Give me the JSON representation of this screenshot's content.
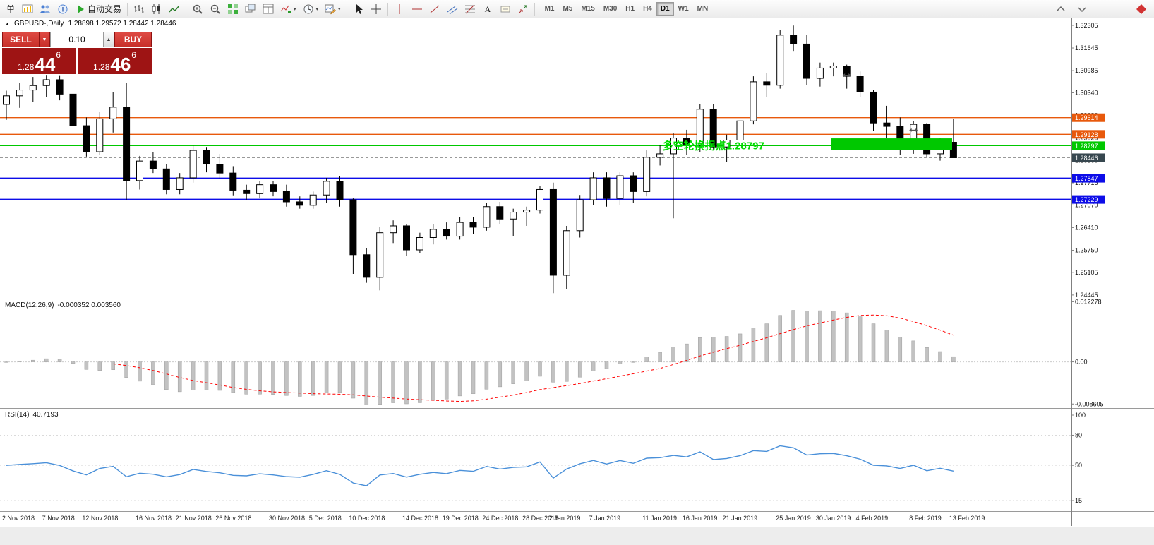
{
  "toolbar": {
    "new_order_label": "单",
    "autotrading_label": "自动交易",
    "timeframes": [
      "M1",
      "M5",
      "M15",
      "M30",
      "H1",
      "H4",
      "D1",
      "W1",
      "MN"
    ],
    "active_timeframe": "D1",
    "items": [
      {
        "type": "button",
        "name": "new-order",
        "label_key": "new_order_label"
      },
      {
        "type": "icon",
        "name": "new-chart",
        "icon": "chart-new"
      },
      {
        "type": "icon",
        "name": "profiles",
        "icon": "profiles"
      },
      {
        "type": "icon",
        "name": "data-window",
        "icon": "info"
      },
      {
        "type": "button-icon",
        "name": "autotrading",
        "icon": "play",
        "label_key": "autotrading_label"
      },
      {
        "type": "sep"
      },
      {
        "type": "icon",
        "name": "bar-chart-mode",
        "icon": "bars"
      },
      {
        "type": "icon",
        "name": "candle-chart-mode",
        "icon": "candles"
      },
      {
        "type": "icon",
        "name": "line-chart-mode",
        "icon": "linechart"
      },
      {
        "type": "sep"
      },
      {
        "type": "icon",
        "name": "zoom-in",
        "icon": "zoom-in"
      },
      {
        "type": "icon",
        "name": "zoom-out",
        "icon": "zoom-out"
      },
      {
        "type": "icon",
        "name": "tile-windows",
        "icon": "tile"
      },
      {
        "type": "icon",
        "name": "cascade-windows",
        "icon": "cascade"
      },
      {
        "type": "icon",
        "name": "arrange-windows",
        "icon": "arrange"
      },
      {
        "type": "icon",
        "name": "indicators",
        "icon": "indicators",
        "caret": true
      },
      {
        "type": "icon",
        "name": "periods",
        "icon": "clock",
        "caret": true
      },
      {
        "type": "icon",
        "name": "templates",
        "icon": "template",
        "caret": true
      },
      {
        "type": "sep"
      },
      {
        "type": "icon",
        "name": "cursor",
        "icon": "cursor"
      },
      {
        "type": "icon",
        "name": "crosshair",
        "icon": "crosshair"
      },
      {
        "type": "sep"
      },
      {
        "type": "icon",
        "name": "vertical-line-tool",
        "icon": "vline"
      },
      {
        "type": "icon",
        "name": "horizontal-line-tool",
        "icon": "hline"
      },
      {
        "type": "icon",
        "name": "trendline-tool",
        "icon": "trend"
      },
      {
        "type": "icon",
        "name": "equidistant-channel-tool",
        "icon": "channel"
      },
      {
        "type": "icon",
        "name": "fibonacci-tool",
        "icon": "fibo"
      },
      {
        "type": "icon",
        "name": "text-tool",
        "icon": "text"
      },
      {
        "type": "icon",
        "name": "text-label-tool",
        "icon": "label"
      },
      {
        "type": "icon",
        "name": "arrows-tool",
        "icon": "arrows"
      },
      {
        "type": "sep"
      },
      {
        "type": "timeframes"
      }
    ],
    "right_items": [
      {
        "name": "scroll-up",
        "icon": "chevup"
      },
      {
        "name": "scroll-down",
        "icon": "chevdn"
      },
      {
        "name": "brand",
        "icon": "brand"
      }
    ]
  },
  "trade_panel": {
    "sell_label": "SELL",
    "buy_label": "BUY",
    "volume": "0.10",
    "bid": {
      "prefix": "1.28",
      "big": "44",
      "sup": "6"
    },
    "ask": {
      "prefix": "1.28",
      "big": "46",
      "sup": "6"
    }
  },
  "chart": {
    "symbol_period": "GBPUSD-,Daily",
    "ohlc_text": "1.28898 1.29572 1.28442 1.28446"
  },
  "chart_data": {
    "type": "candlestick",
    "symbol": "GBPUSD-",
    "timeframe": "Daily",
    "current_bar": {
      "open": 1.28898,
      "high": 1.29572,
      "low": 1.28442,
      "close": 1.28446
    },
    "y_axis_labels": [
      "1.32305",
      "1.31645",
      "1.30985",
      "1.30340",
      "1.29680",
      "1.29020",
      "1.28360",
      "1.27715",
      "1.27070",
      "1.26410",
      "1.25750",
      "1.25105",
      "1.24445"
    ],
    "levels": [
      {
        "price": 1.29614,
        "label": "1.29614",
        "color": "#E8590C",
        "width": 1.4
      },
      {
        "price": 1.29128,
        "label": "1.29128",
        "color": "#E8590C",
        "width": 1.4
      },
      {
        "price": 1.28797,
        "label": "1.28797",
        "color": "#00C800",
        "width": 1.2
      },
      {
        "price": 1.27847,
        "label": "1.27847",
        "color": "#0D0DE8",
        "width": 2
      },
      {
        "price": 1.27229,
        "label": "1.27229",
        "color": "#0D0DE8",
        "width": 2
      }
    ],
    "bid_line": {
      "price": 1.28446,
      "label": "1.28446"
    },
    "rectangle": {
      "from_index": 61.8,
      "to_index": 70.9,
      "price_top": 1.2901,
      "price_bottom": 1.2867
    },
    "annotation": {
      "text": "多空轮换拐点1.28797",
      "index": 53,
      "price": 1.28797
    },
    "trade_markers": [
      {
        "index": 63,
        "price": 1.3085
      },
      {
        "index": 68,
        "price": 1.2925
      }
    ],
    "candles": [
      [
        "2 Nov 2018",
        1.3,
        1.304,
        1.2955,
        1.3025
      ],
      [
        "5 Nov 2018",
        1.3025,
        1.3062,
        1.299,
        1.3042
      ],
      [
        "6 Nov 2018",
        1.3042,
        1.308,
        1.3008,
        1.3055
      ],
      [
        "7 Nov 2018",
        1.3055,
        1.3086,
        1.3022,
        1.3072
      ],
      [
        "8 Nov 2018",
        1.3072,
        1.3085,
        1.3012,
        1.303
      ],
      [
        "9 Nov 2018",
        1.303,
        1.3048,
        1.292,
        1.2938
      ],
      [
        "12 Nov 2018",
        1.2938,
        1.2962,
        1.2848,
        1.2862
      ],
      [
        "13 Nov 2018",
        1.2862,
        1.2978,
        1.2852,
        1.2958
      ],
      [
        "14 Nov 2018",
        1.2958,
        1.3035,
        1.2918,
        1.2992
      ],
      [
        "15 Nov 2018",
        1.2992,
        1.3062,
        1.2722,
        1.2778
      ],
      [
        "16 Nov 2018",
        1.2778,
        1.285,
        1.2752,
        1.2835
      ],
      [
        "19 Nov 2018",
        1.2835,
        1.286,
        1.28,
        1.2812
      ],
      [
        "20 Nov 2018",
        1.2812,
        1.2826,
        1.2738,
        1.2752
      ],
      [
        "21 Nov 2018",
        1.2752,
        1.28,
        1.2738,
        1.2786
      ],
      [
        "22 Nov 2018",
        1.2786,
        1.288,
        1.2772,
        1.2866
      ],
      [
        "23 Nov 2018",
        1.2866,
        1.2876,
        1.2802,
        1.2826
      ],
      [
        "26 Nov 2018",
        1.2826,
        1.2856,
        1.2782,
        1.28
      ],
      [
        "27 Nov 2018",
        1.28,
        1.282,
        1.2735,
        1.275
      ],
      [
        "28 Nov 2018",
        1.275,
        1.2766,
        1.2722,
        1.274
      ],
      [
        "29 Nov 2018",
        1.274,
        1.2776,
        1.2726,
        1.2766
      ],
      [
        "30 Nov 2018",
        1.2766,
        1.2776,
        1.2732,
        1.2746
      ],
      [
        "3 Dec 2018",
        1.2746,
        1.2766,
        1.2702,
        1.2716
      ],
      [
        "4 Dec 2018",
        1.2716,
        1.2732,
        1.2696,
        1.2706
      ],
      [
        "5 Dec 2018",
        1.2706,
        1.2746,
        1.2696,
        1.2736
      ],
      [
        "6 Dec 2018",
        1.2736,
        1.2786,
        1.2712,
        1.2776
      ],
      [
        "7 Dec 2018",
        1.2776,
        1.279,
        1.2702,
        1.2722
      ],
      [
        "10 Dec 2018",
        1.2722,
        1.2726,
        1.2506,
        1.2562
      ],
      [
        "11 Dec 2018",
        1.2562,
        1.2582,
        1.248,
        1.2496
      ],
      [
        "12 Dec 2018",
        1.2496,
        1.2642,
        1.2458,
        1.2626
      ],
      [
        "13 Dec 2018",
        1.2626,
        1.2662,
        1.2596,
        1.2646
      ],
      [
        "14 Dec 2018",
        1.2646,
        1.2652,
        1.2558,
        1.2576
      ],
      [
        "17 Dec 2018",
        1.2576,
        1.2626,
        1.2566,
        1.2612
      ],
      [
        "18 Dec 2018",
        1.2612,
        1.2652,
        1.2592,
        1.2636
      ],
      [
        "19 Dec 2018",
        1.2636,
        1.2656,
        1.2606,
        1.2616
      ],
      [
        "20 Dec 2018",
        1.2616,
        1.2672,
        1.2606,
        1.2656
      ],
      [
        "21 Dec 2018",
        1.2656,
        1.2672,
        1.2622,
        1.2642
      ],
      [
        "24 Dec 2018",
        1.2642,
        1.2712,
        1.2632,
        1.2702
      ],
      [
        "26 Dec 2018",
        1.2702,
        1.2716,
        1.2652,
        1.2666
      ],
      [
        "27 Dec 2018",
        1.2666,
        1.2696,
        1.2616,
        1.2686
      ],
      [
        "28 Dec 2018",
        1.2686,
        1.2702,
        1.2646,
        1.2692
      ],
      [
        "31 Dec 2018",
        1.2692,
        1.2762,
        1.2682,
        1.2752
      ],
      [
        "2 Jan 2019",
        1.2752,
        1.2772,
        1.245,
        1.2502
      ],
      [
        "3 Jan 2019",
        1.2502,
        1.2646,
        1.2462,
        1.2632
      ],
      [
        "4 Jan 2019",
        1.2632,
        1.2736,
        1.2612,
        1.2722
      ],
      [
        "7 Jan 2019",
        1.2722,
        1.2802,
        1.2706,
        1.2786
      ],
      [
        "8 Jan 2019",
        1.2786,
        1.2802,
        1.2702,
        1.2726
      ],
      [
        "9 Jan 2019",
        1.2726,
        1.2802,
        1.2706,
        1.2792
      ],
      [
        "10 Jan 2019",
        1.2792,
        1.2802,
        1.2712,
        1.2746
      ],
      [
        "11 Jan 2019",
        1.2746,
        1.2866,
        1.2732,
        1.2846
      ],
      [
        "14 Jan 2019",
        1.2846,
        1.2882,
        1.2822,
        1.2856
      ],
      [
        "15 Jan 2019",
        1.2856,
        1.2916,
        1.2668,
        1.2902
      ],
      [
        "16 Jan 2019",
        1.2902,
        1.2926,
        1.2852,
        1.2882
      ],
      [
        "17 Jan 2019",
        1.2882,
        1.3002,
        1.2862,
        1.2986
      ],
      [
        "18 Jan 2019",
        1.2986,
        1.3002,
        1.2866,
        1.2876
      ],
      [
        "21 Jan 2019",
        1.2876,
        1.2912,
        1.2832,
        1.2896
      ],
      [
        "22 Jan 2019",
        1.2896,
        1.2962,
        1.2866,
        1.2952
      ],
      [
        "23 Jan 2019",
        1.2952,
        1.3082,
        1.2942,
        1.3066
      ],
      [
        "24 Jan 2019",
        1.3066,
        1.3092,
        1.3022,
        1.3056
      ],
      [
        "25 Jan 2019",
        1.3056,
        1.3216,
        1.3046,
        1.3202
      ],
      [
        "28 Jan 2019",
        1.3202,
        1.323,
        1.3156,
        1.3176
      ],
      [
        "29 Jan 2019",
        1.3176,
        1.3202,
        1.3056,
        1.3076
      ],
      [
        "30 Jan 2019",
        1.3076,
        1.3122,
        1.3052,
        1.3106
      ],
      [
        "31 Jan 2019",
        1.3106,
        1.3122,
        1.3082,
        1.3112
      ],
      [
        "1 Feb 2019",
        1.3112,
        1.3116,
        1.3046,
        1.3082
      ],
      [
        "4 Feb 2019",
        1.3082,
        1.3096,
        1.3022,
        1.3036
      ],
      [
        "5 Feb 2019",
        1.3036,
        1.3042,
        1.2922,
        1.2946
      ],
      [
        "6 Feb 2019",
        1.2946,
        1.2996,
        1.2902,
        1.2936
      ],
      [
        "7 Feb 2019",
        1.2936,
        1.2962,
        1.2852,
        1.2896
      ],
      [
        "8 Feb 2019",
        1.2896,
        1.2952,
        1.2856,
        1.2942
      ],
      [
        "11 Feb 2019",
        1.2942,
        1.2946,
        1.2846,
        1.2856
      ],
      [
        "12 Feb 2019",
        1.2856,
        1.2902,
        1.2836,
        1.289
      ],
      [
        "13 Feb 2019",
        1.28898,
        1.29572,
        1.28442,
        1.28446
      ]
    ],
    "date_axis": [
      [
        0,
        "2 Nov 2018"
      ],
      [
        3,
        "7 Nov 2018"
      ],
      [
        6,
        "12 Nov 2018"
      ],
      [
        10,
        "16 Nov 2018"
      ],
      [
        13,
        "21 Nov 2018"
      ],
      [
        16,
        "26 Nov 2018"
      ],
      [
        20,
        "30 Nov 2018"
      ],
      [
        23,
        "5 Dec 2018"
      ],
      [
        26,
        "10 Dec 2018"
      ],
      [
        30,
        "14 Dec 2018"
      ],
      [
        33,
        "19 Dec 2018"
      ],
      [
        36,
        "24 Dec 2018"
      ],
      [
        39,
        "28 Dec 2018"
      ],
      [
        41,
        "2 Jan 2019"
      ],
      [
        44,
        "7 Jan 2019"
      ],
      [
        48,
        "11 Jan 2019"
      ],
      [
        51,
        "16 Jan 2019"
      ],
      [
        54,
        "21 Jan 2019"
      ],
      [
        58,
        "25 Jan 2019"
      ],
      [
        61,
        "30 Jan 2019"
      ],
      [
        64,
        "4 Feb 2019"
      ],
      [
        68,
        "8 Feb 2019"
      ],
      [
        71,
        "13 Feb 2019"
      ]
    ],
    "macd": {
      "label": "MACD(12,26,9)",
      "values_text": "-0.000352 0.003560",
      "params": [
        12,
        26,
        9
      ],
      "axis_labels": [
        "0.012278",
        "0.00",
        "-0.008605"
      ]
    },
    "rsi": {
      "label": "RSI(14)",
      "value_text": "40.7193",
      "period": 14,
      "axis_labels": [
        "100",
        "80",
        "50",
        "15"
      ]
    }
  },
  "colors": {
    "bull": "#FFFFFF",
    "bear": "#000000",
    "level_orange": "#E8590C",
    "level_green": "#00C800",
    "level_blue": "#0D0DE8",
    "bid_tag": "#37474F",
    "macd_hist": "#C2C2C2",
    "macd_signal": "#FF0000",
    "rsi_line": "#4A90D9",
    "annotation_green": "#00DC00",
    "quote_red": "#9E1414",
    "button_red": "#C8302A"
  }
}
